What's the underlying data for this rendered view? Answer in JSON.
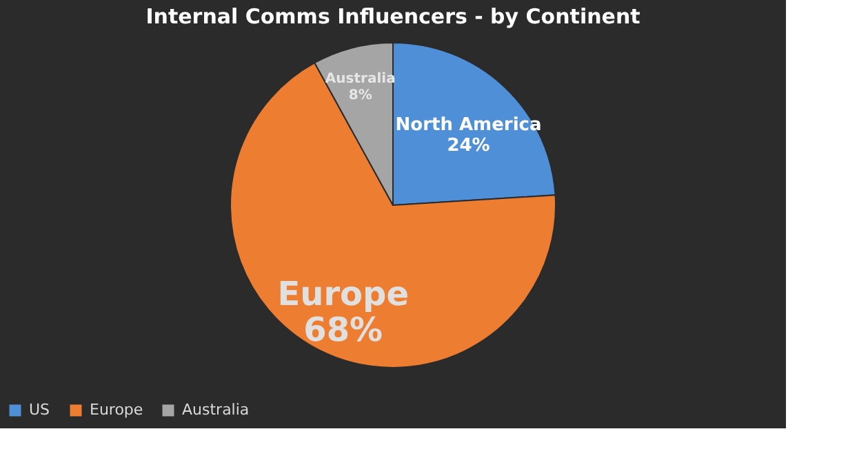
{
  "chart_data": {
    "type": "pie",
    "title": "Internal Comms Influencers  - by Continent",
    "categories": [
      "US",
      "Europe",
      "Australia"
    ],
    "values": [
      24,
      68,
      8
    ],
    "colors": [
      "#4f8fd8",
      "#ed7d31",
      "#a5a5a5"
    ],
    "value_labels": [
      "North America\n24%",
      "Europe\n68%",
      "Australia\n8%"
    ],
    "legend": "bottom"
  }
}
